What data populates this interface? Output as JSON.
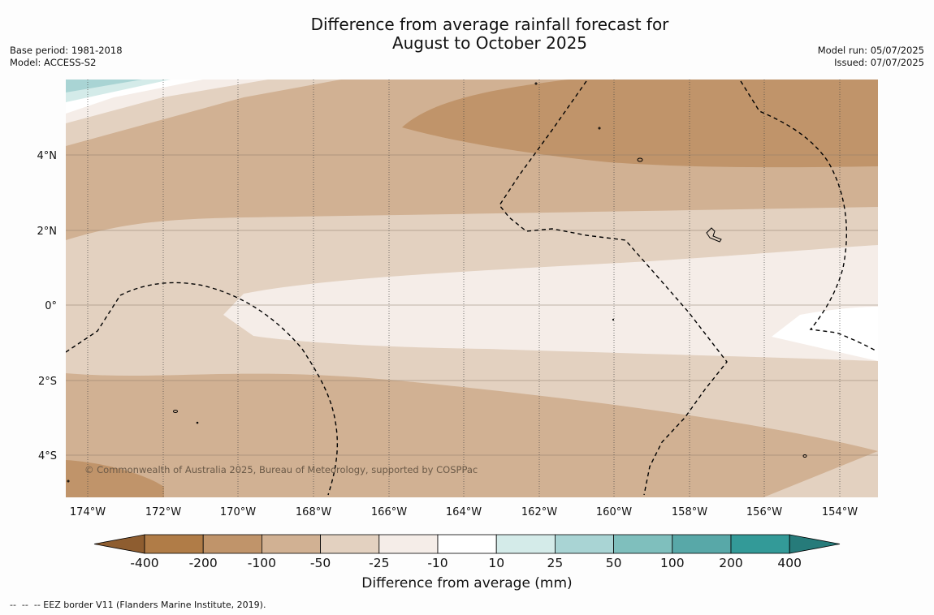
{
  "title": {
    "line1": "Difference from average rainfall forecast for",
    "line2": "August to October 2025"
  },
  "meta": {
    "base_period": "Base period: 1981-2018",
    "model": "Model: ACCESS-S2",
    "model_run": "Model run: 05/07/2025",
    "issued": "Issued: 07/07/2025"
  },
  "copyright": "© Commonwealth of Australia 2025, Bureau of Meteorology, supported by COSPPac",
  "map": {
    "lat_labels": [
      "4°N",
      "2°N",
      "0°",
      "2°S",
      "4°S"
    ],
    "lon_labels": [
      "174°W",
      "172°W",
      "170°W",
      "168°W",
      "166°W",
      "164°W",
      "162°W",
      "160°W",
      "158°W",
      "156°W",
      "154°W"
    ],
    "category_colors": {
      "-100 to -200": "#c0946a",
      "-50 to -100": "#d1b193",
      "-25 to -50": "#e3d1c0",
      "-10 to -25": "#f5ede8",
      "-10 to 10": "#ffffff",
      "10 to 25": "#d4ebe9",
      "25 to 50": "#a9d4d4"
    }
  },
  "colorbar": {
    "title": "Difference from average (mm)",
    "tick_labels": [
      "-400",
      "-200",
      "-100",
      "-50",
      "-25",
      "-10",
      "10",
      "25",
      "50",
      "100",
      "200",
      "400"
    ],
    "colors": [
      "#8e5d30",
      "#b07c47",
      "#c0946a",
      "#d1b193",
      "#e3d1c0",
      "#f5ede8",
      "#ffffff",
      "#d4ebe9",
      "#a9d4d4",
      "#7fbfbd",
      "#58a8a8",
      "#339a98",
      "#267b7a"
    ]
  },
  "legend_note": "--  --  -- EEZ border V11 (Flanders Marine Institute, 2019)."
}
